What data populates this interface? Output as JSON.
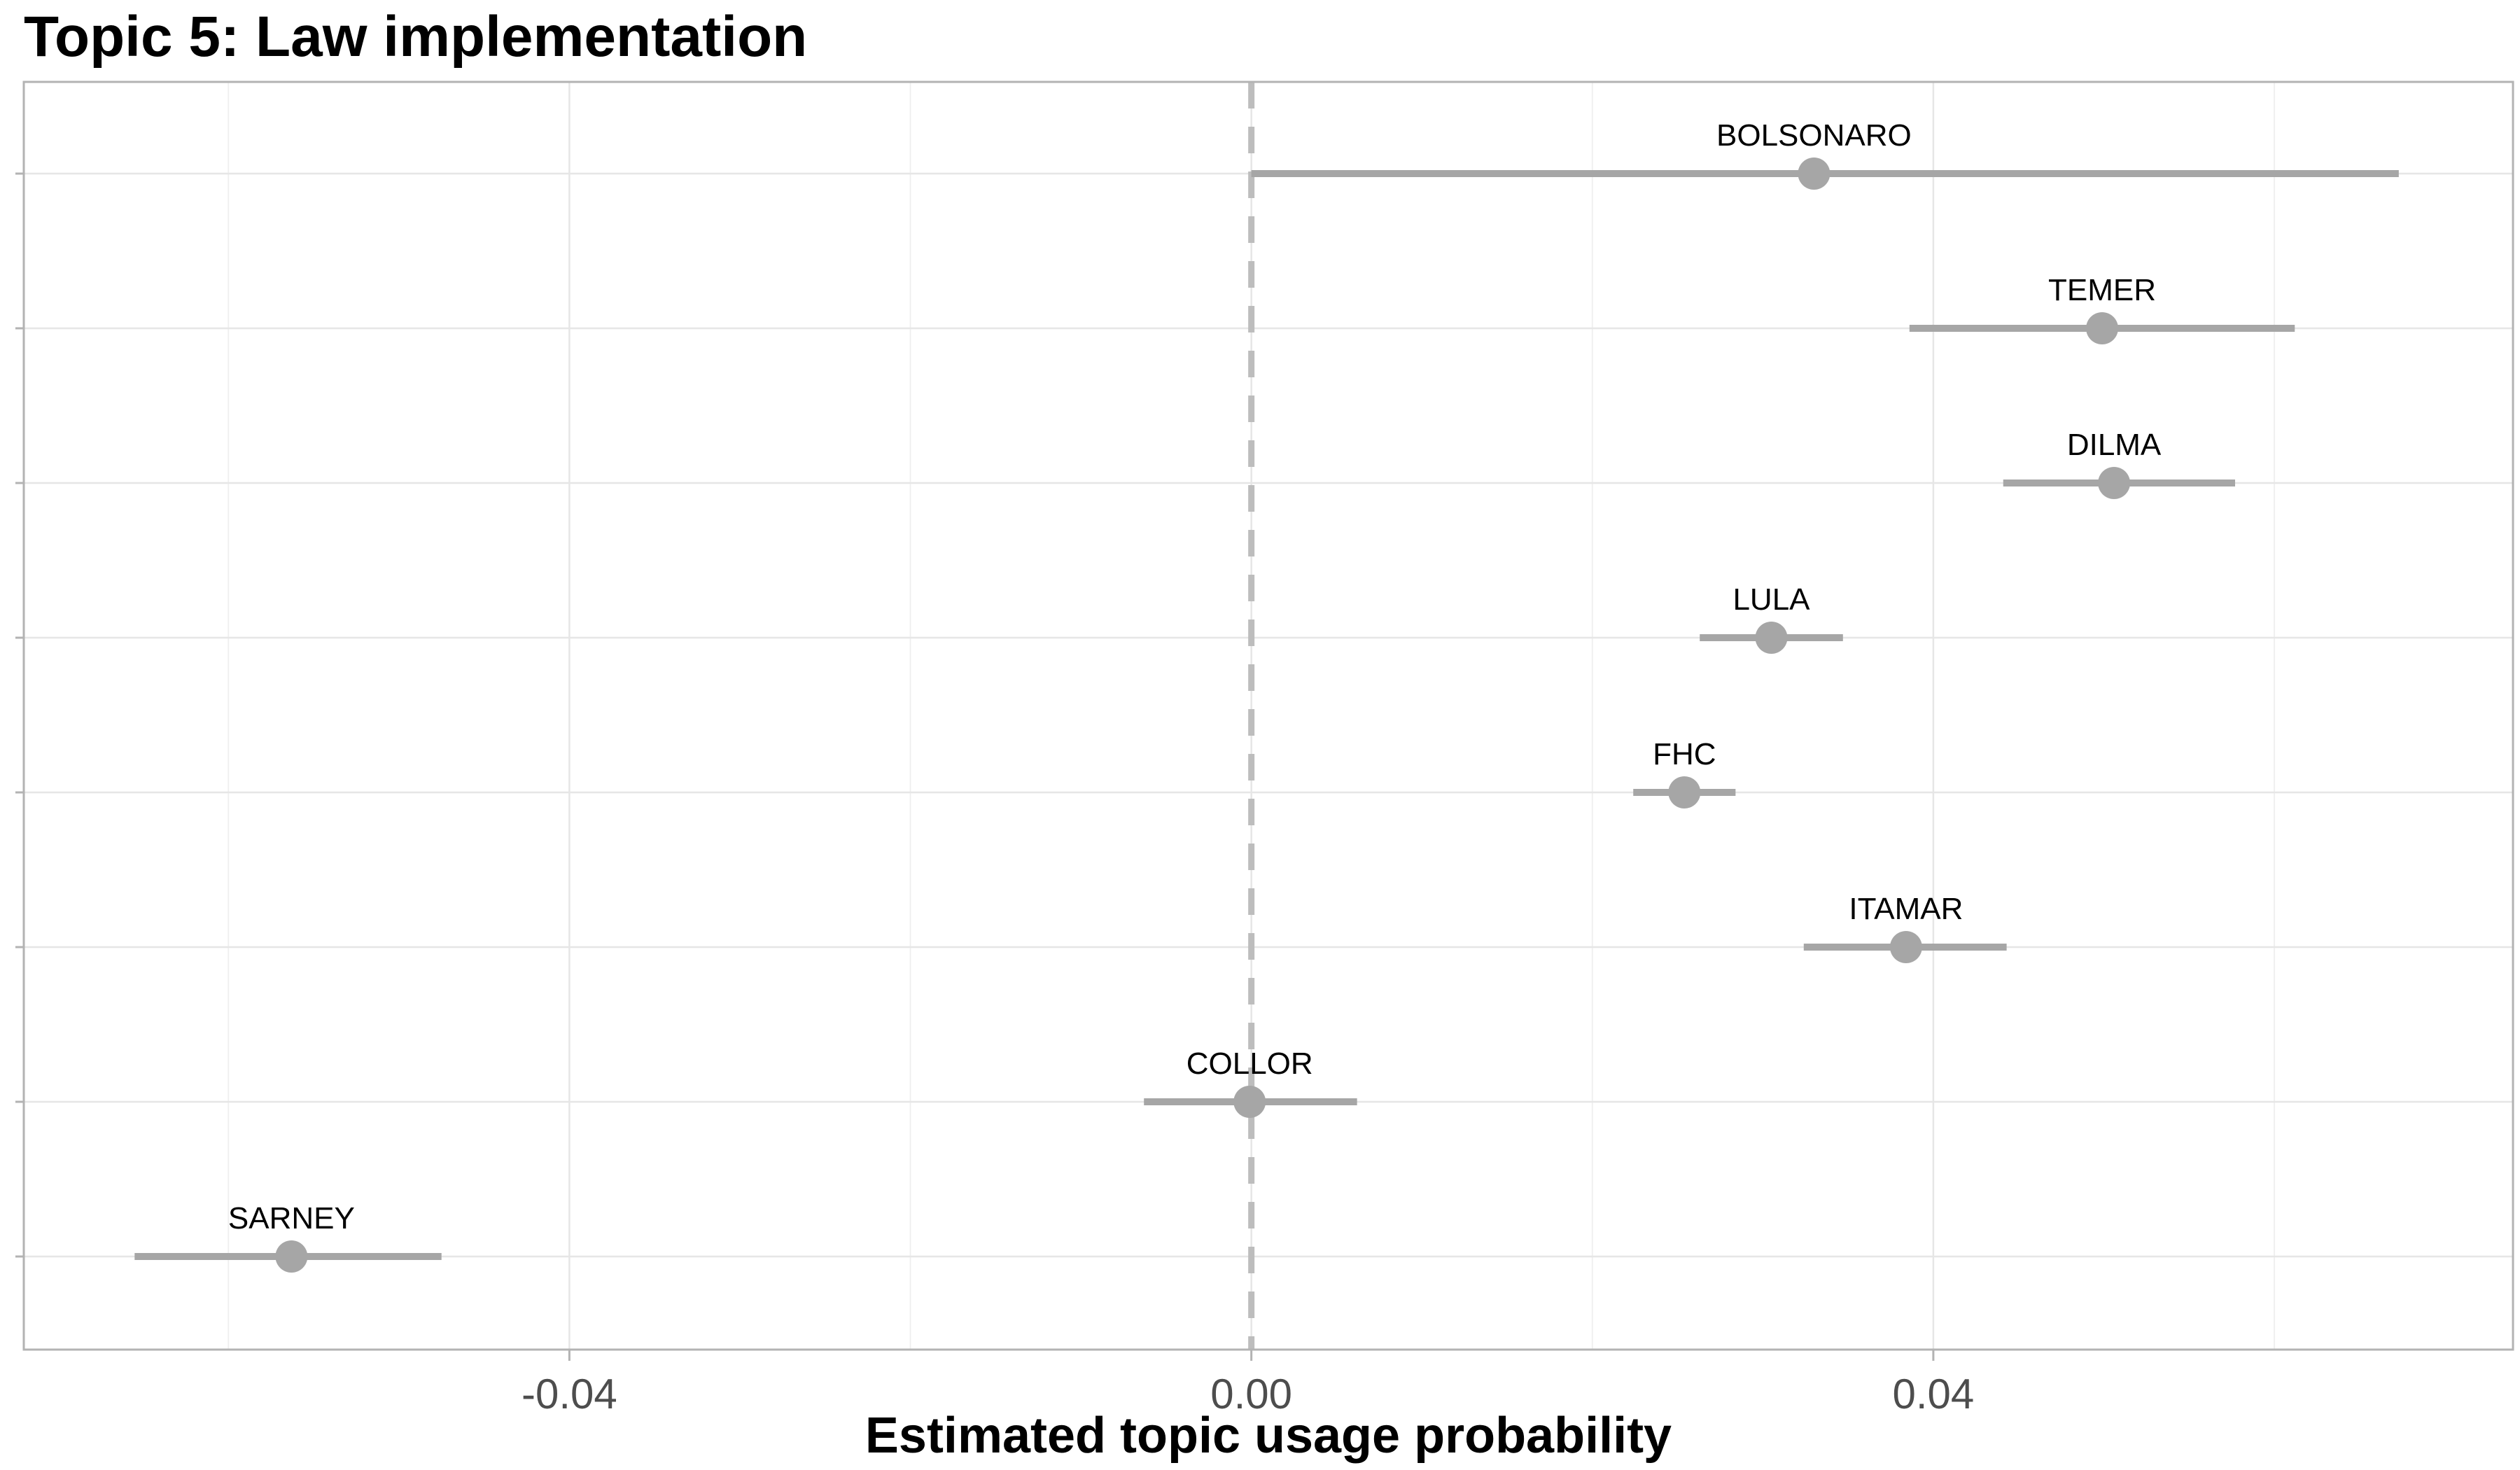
{
  "chart_data": {
    "type": "scatter",
    "subtype": "point-range",
    "title": "Topic 5: Law implementation",
    "xlabel": "Estimated topic usage probability",
    "ylabel": "",
    "xlim": [
      -0.072,
      0.074
    ],
    "x_ticks": [
      -0.04,
      0.0,
      0.04
    ],
    "x_tick_labels": [
      "-0.04",
      "0.00",
      "0.04"
    ],
    "reference_line": {
      "x": 0.0,
      "style": "dashed"
    },
    "grid": true,
    "legend": "none",
    "point_color": "#a6a6a6",
    "series": [
      {
        "points": [
          {
            "label": "BOLSONARO",
            "estimate": 0.033,
            "lower": 0.0,
            "upper": 0.0673
          },
          {
            "label": "TEMER",
            "estimate": 0.0499,
            "lower": 0.0386,
            "upper": 0.0612
          },
          {
            "label": "DILMA",
            "estimate": 0.0506,
            "lower": 0.0441,
            "upper": 0.0577
          },
          {
            "label": "LULA",
            "estimate": 0.0305,
            "lower": 0.0263,
            "upper": 0.0347
          },
          {
            "label": "FHC",
            "estimate": 0.0254,
            "lower": 0.0224,
            "upper": 0.0284
          },
          {
            "label": "ITAMAR",
            "estimate": 0.0384,
            "lower": 0.0324,
            "upper": 0.0443
          },
          {
            "label": "COLLOR",
            "estimate": -0.0001,
            "lower": -0.0063,
            "upper": 0.0062
          },
          {
            "label": "SARNEY",
            "estimate": -0.0563,
            "lower": -0.0655,
            "upper": -0.0475
          }
        ]
      }
    ]
  }
}
